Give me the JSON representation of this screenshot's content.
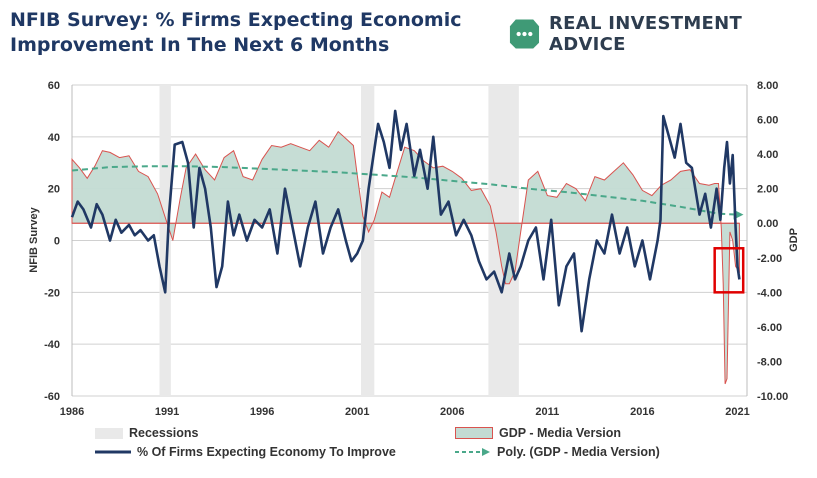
{
  "header": {
    "title_line1": "NFIB Survey:  % Firms Expecting Economic",
    "title_line2": "Improvement In The  Next 6 Months",
    "brand": "REAL INVESTMENT ADVICE"
  },
  "colors": {
    "title": "#1f3864",
    "nfib_line": "#203864",
    "gdp_fill": "#c3dbd3",
    "gdp_outline": "#d9534f",
    "poly_trend": "#4aa88a",
    "recession": "#e9e9e9",
    "highlight_box": "#e00000",
    "brand_icon": "#3f9a76"
  },
  "chart_data": {
    "type": "line",
    "ylabel": "NFIB Survey",
    "y2label": "GDP",
    "xlim": [
      1986,
      2021.5
    ],
    "ylim": [
      -60,
      60
    ],
    "y2lim": [
      -10,
      8
    ],
    "x_ticks": [
      "1986",
      "1991",
      "1996",
      "2001",
      "2006",
      "2011",
      "2016",
      "2021"
    ],
    "y_ticks": [
      "60",
      "40",
      "20",
      "0",
      "-20",
      "-40",
      "-60"
    ],
    "y2_ticks": [
      "8.00",
      "6.00",
      "4.00",
      "2.00",
      "0.00",
      "-2.00",
      "-4.00",
      "-6.00",
      "-8.00",
      "-10.00"
    ],
    "recessions": [
      [
        1990.6,
        1991.2
      ],
      [
        2001.2,
        2001.9
      ],
      [
        2007.9,
        2009.5
      ]
    ],
    "series": [
      {
        "name": "% Of Firms Expecting Economy To Improve",
        "axis": "left",
        "x": [
          1986.0,
          1986.3,
          1986.6,
          1987.0,
          1987.3,
          1987.6,
          1988.0,
          1988.3,
          1988.6,
          1989.0,
          1989.3,
          1989.6,
          1990.0,
          1990.3,
          1990.6,
          1990.9,
          1991.1,
          1991.4,
          1991.8,
          1992.1,
          1992.4,
          1992.7,
          1993.0,
          1993.3,
          1993.6,
          1993.9,
          1994.2,
          1994.5,
          1994.8,
          1995.2,
          1995.6,
          1996.0,
          1996.4,
          1996.8,
          1997.2,
          1997.6,
          1998.0,
          1998.4,
          1998.8,
          1999.2,
          1999.6,
          2000.0,
          2000.4,
          2000.7,
          2001.0,
          2001.3,
          2001.6,
          2001.9,
          2002.1,
          2002.4,
          2002.7,
          2003.0,
          2003.3,
          2003.6,
          2004.0,
          2004.3,
          2004.7,
          2005.0,
          2005.4,
          2005.8,
          2006.2,
          2006.6,
          2007.0,
          2007.4,
          2007.8,
          2008.2,
          2008.6,
          2009.0,
          2009.3,
          2009.6,
          2010.0,
          2010.4,
          2010.8,
          2011.2,
          2011.6,
          2012.0,
          2012.4,
          2012.8,
          2013.2,
          2013.6,
          2014.0,
          2014.4,
          2014.8,
          2015.2,
          2015.6,
          2016.0,
          2016.4,
          2016.8,
          2016.95,
          2017.1,
          2017.4,
          2017.7,
          2018.0,
          2018.3,
          2018.6,
          2019.0,
          2019.3,
          2019.6,
          2019.9,
          2020.1,
          2020.3,
          2020.45,
          2020.6,
          2020.75,
          2020.9,
          2021.0,
          2021.1
        ],
        "y": [
          9,
          15,
          12,
          5,
          14,
          10,
          0,
          8,
          3,
          6,
          2,
          4,
          0,
          2,
          -10,
          -20,
          10,
          37,
          38,
          30,
          5,
          28,
          20,
          5,
          -18,
          -10,
          15,
          2,
          10,
          0,
          8,
          5,
          12,
          -5,
          20,
          5,
          -10,
          5,
          15,
          -5,
          5,
          12,
          0,
          -8,
          -5,
          0,
          20,
          35,
          45,
          38,
          28,
          50,
          35,
          45,
          25,
          35,
          20,
          40,
          10,
          15,
          2,
          8,
          2,
          -8,
          -15,
          -12,
          -20,
          -5,
          -15,
          -10,
          0,
          5,
          -15,
          8,
          -25,
          -10,
          -5,
          -35,
          -15,
          0,
          -5,
          10,
          -5,
          5,
          -10,
          0,
          -15,
          0,
          8,
          48,
          40,
          32,
          45,
          30,
          28,
          10,
          18,
          5,
          20,
          8,
          28,
          38,
          22,
          33,
          5,
          -10,
          -15
        ]
      },
      {
        "name": "GDP - Media Version",
        "axis": "right",
        "x": [
          1986.0,
          1986.4,
          1986.8,
          1987.2,
          1987.6,
          1988.0,
          1988.5,
          1989.0,
          1989.5,
          1990.0,
          1990.5,
          1991.0,
          1991.3,
          1991.7,
          1992.0,
          1992.5,
          1993.0,
          1993.5,
          1994.0,
          1994.5,
          1995.0,
          1995.5,
          1996.0,
          1996.5,
          1997.0,
          1997.5,
          1998.0,
          1998.5,
          1999.0,
          1999.5,
          2000.0,
          2000.5,
          2000.8,
          2001.0,
          2001.3,
          2001.6,
          2001.9,
          2002.3,
          2002.7,
          2003.0,
          2003.5,
          2004.0,
          2004.5,
          2005.0,
          2005.5,
          2006.0,
          2006.5,
          2007.0,
          2007.5,
          2008.0,
          2008.3,
          2008.6,
          2008.8,
          2009.0,
          2009.3,
          2009.6,
          2010.0,
          2010.5,
          2011.0,
          2011.5,
          2012.0,
          2012.5,
          2013.0,
          2013.5,
          2014.0,
          2014.5,
          2015.0,
          2015.5,
          2016.0,
          2016.5,
          2017.0,
          2017.5,
          2018.0,
          2018.5,
          2019.0,
          2019.5,
          2019.8,
          2020.0,
          2020.15,
          2020.25,
          2020.35,
          2020.45,
          2020.6,
          2020.75,
          2020.9,
          2021.1
        ],
        "y": [
          3.7,
          3.2,
          2.6,
          3.3,
          4.2,
          4.1,
          3.8,
          3.9,
          3.0,
          2.7,
          1.7,
          0.0,
          -1.0,
          1.5,
          3.2,
          4.0,
          3.1,
          2.5,
          3.8,
          4.2,
          2.7,
          2.5,
          3.7,
          4.5,
          4.4,
          4.6,
          4.4,
          4.2,
          4.8,
          4.4,
          5.3,
          4.8,
          4.5,
          2.8,
          0.4,
          -0.5,
          0.2,
          1.8,
          1.5,
          2.6,
          4.4,
          4.2,
          3.6,
          3.2,
          3.3,
          3.0,
          2.6,
          1.9,
          2.0,
          1.0,
          -0.5,
          -2.5,
          -3.5,
          -3.5,
          -2.8,
          -0.5,
          2.5,
          3.0,
          1.6,
          1.5,
          2.3,
          2.0,
          1.3,
          2.7,
          2.5,
          3.0,
          3.5,
          2.8,
          1.9,
          1.6,
          2.2,
          2.5,
          3.0,
          3.1,
          2.3,
          2.2,
          2.3,
          2.3,
          -0.3,
          -3.5,
          -9.3,
          -9.0,
          -0.5,
          -1.0,
          -2.5,
          -2.8
        ]
      },
      {
        "name": "Poly. (GDP - Media Version)",
        "axis": "right",
        "x": [
          1986.0,
          1988.0,
          1990.0,
          1992.0,
          1994.0,
          1996.0,
          1998.0,
          2000.0,
          2002.0,
          2004.0,
          2006.0,
          2008.0,
          2010.0,
          2012.0,
          2014.0,
          2016.0,
          2018.0,
          2020.0,
          2021.0
        ],
        "y": [
          3.05,
          3.25,
          3.3,
          3.3,
          3.25,
          3.15,
          3.05,
          2.95,
          2.8,
          2.65,
          2.45,
          2.25,
          2.0,
          1.8,
          1.55,
          1.3,
          0.95,
          0.55,
          0.5
        ]
      }
    ],
    "legend": [
      "Recessions",
      "GDP - Media Version",
      "% Of Firms Expecting Economy To Improve",
      "Poly. (GDP - Media Version)"
    ],
    "legend_position": "bottom",
    "annotations": [
      {
        "type": "box",
        "x_range": [
          2019.8,
          2021.3
        ],
        "y_range": [
          -20,
          -3
        ]
      }
    ]
  }
}
